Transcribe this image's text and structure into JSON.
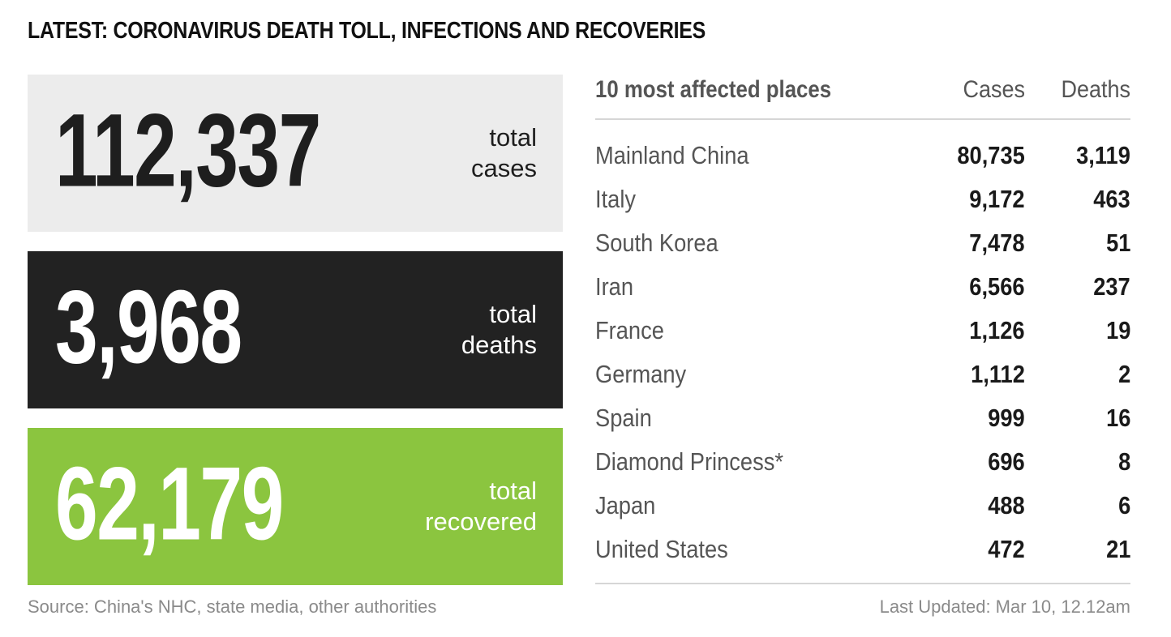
{
  "title": "LATEST: CORONAVIRUS DEATH TOLL, INFECTIONS AND RECOVERIES",
  "stats": {
    "cases": {
      "value": "112,337",
      "label_line1": "total",
      "label_line2": "cases",
      "color": "#ececec"
    },
    "deaths": {
      "value": "3,968",
      "label_line1": "total",
      "label_line2": "deaths",
      "color": "#222222"
    },
    "recovered": {
      "value": "62,179",
      "label_line1": "total",
      "label_line2": "recovered",
      "color": "#8bc53f"
    }
  },
  "table": {
    "heading": "10 most affected places",
    "col_cases": "Cases",
    "col_deaths": "Deaths",
    "rows": [
      {
        "place": "Mainland China",
        "cases": "80,735",
        "deaths": "3,119"
      },
      {
        "place": "Italy",
        "cases": "9,172",
        "deaths": "463"
      },
      {
        "place": "South Korea",
        "cases": "7,478",
        "deaths": "51"
      },
      {
        "place": "Iran",
        "cases": "6,566",
        "deaths": "237"
      },
      {
        "place": "France",
        "cases": "1,126",
        "deaths": "19"
      },
      {
        "place": "Germany",
        "cases": "1,112",
        "deaths": "2"
      },
      {
        "place": "Spain",
        "cases": "999",
        "deaths": "16"
      },
      {
        "place": "Diamond Princess*",
        "cases": "696",
        "deaths": "8"
      },
      {
        "place": "Japan",
        "cases": "488",
        "deaths": "6"
      },
      {
        "place": "United States",
        "cases": "472",
        "deaths": "21"
      }
    ]
  },
  "footer": {
    "source": "Source: China's NHC, state media, other authorities",
    "updated": "Last Updated: Mar 10, 12.12am"
  }
}
